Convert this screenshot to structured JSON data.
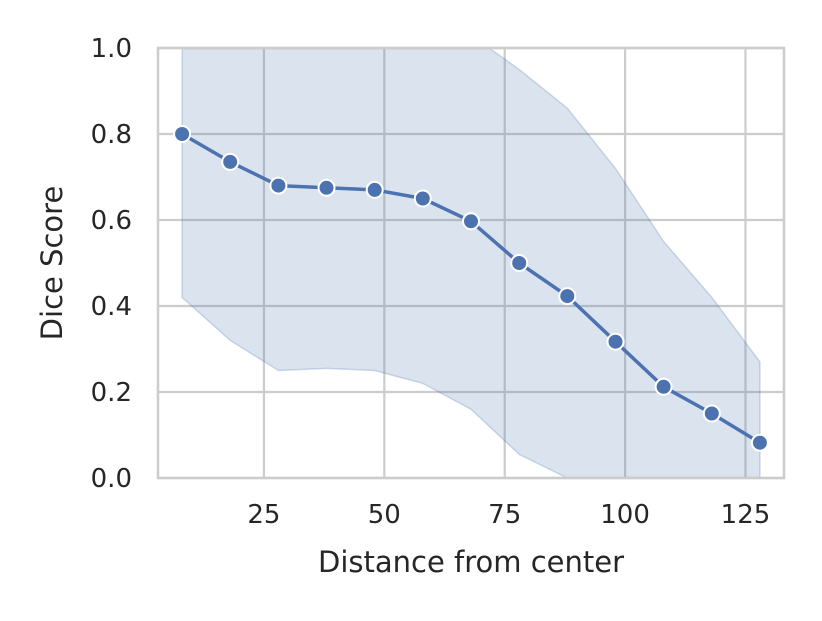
{
  "chart_data": {
    "type": "line",
    "title": "",
    "xlabel": "Distance from center",
    "ylabel": "Dice Score",
    "xlim": [
      3,
      133
    ],
    "ylim": [
      0,
      1
    ],
    "x_ticks": [
      25,
      50,
      75,
      100,
      125
    ],
    "x_tick_labels": [
      "25",
      "50",
      "75",
      "100",
      "125"
    ],
    "y_ticks": [
      0,
      0.2,
      0.4,
      0.6,
      0.8,
      1.0
    ],
    "y_tick_labels": [
      "0.0",
      "0.2",
      "0.4",
      "0.6",
      "0.8",
      "1.0"
    ],
    "grid": true,
    "series": [
      {
        "x": [
          8,
          18,
          28,
          38,
          48,
          58,
          68,
          78,
          88,
          98,
          108,
          118,
          128
        ],
        "values": [
          0.8,
          0.735,
          0.68,
          0.675,
          0.67,
          0.65,
          0.597,
          0.5,
          0.423,
          0.317,
          0.212,
          0.15,
          0.082
        ],
        "band_lower": [
          0.42,
          0.32,
          0.25,
          0.255,
          0.25,
          0.22,
          0.16,
          0.055,
          0.0,
          -0.03,
          -0.05,
          -0.05,
          -0.05
        ],
        "band_upper": [
          1.05,
          1.05,
          1.05,
          1.05,
          1.05,
          1.05,
          1.03,
          0.95,
          0.86,
          0.72,
          0.55,
          0.42,
          0.27
        ],
        "color": "#4c72b0",
        "band_color": "#4c72b0",
        "marker": "circle"
      }
    ]
  }
}
